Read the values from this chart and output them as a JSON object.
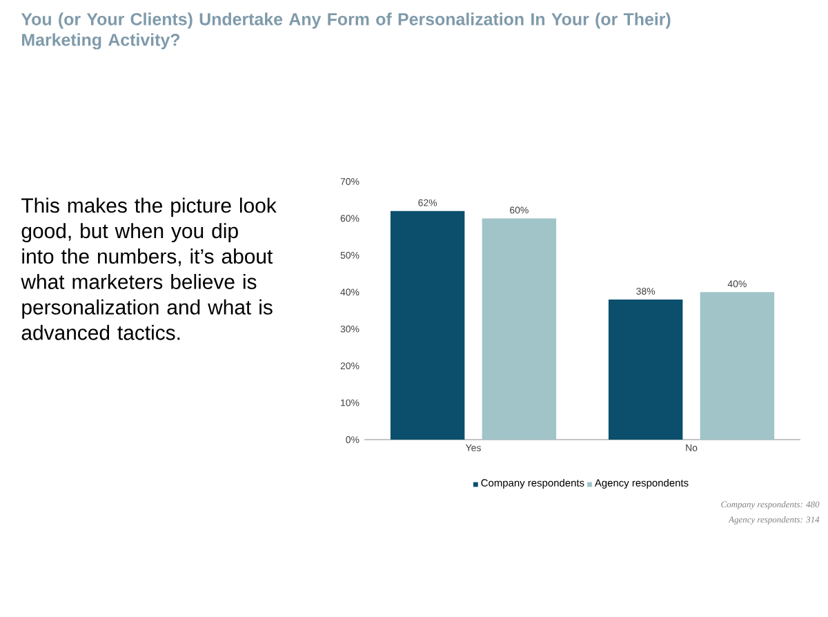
{
  "chart_data": {
    "type": "bar",
    "title": "You (or Your Clients) Undertake Any Form of Personalization In Your (or Their) Marketing Activity?",
    "categories": [
      "Yes",
      "No"
    ],
    "series": [
      {
        "name": "Company respondents",
        "color": "#0b4f6c",
        "values": [
          62,
          38
        ],
        "value_labels": [
          "62%",
          "38%"
        ]
      },
      {
        "name": "Agency respondents",
        "color": "#a0c4c8",
        "values": [
          60,
          40
        ],
        "value_labels": [
          "60%",
          "40%"
        ]
      }
    ],
    "ylim": [
      0,
      70
    ],
    "yticks": [
      {
        "value": 0,
        "label": "0%"
      },
      {
        "value": 10,
        "label": "10%"
      },
      {
        "value": 20,
        "label": "20%"
      },
      {
        "value": 30,
        "label": "30%"
      },
      {
        "value": 40,
        "label": "40%"
      },
      {
        "value": 50,
        "label": "50%"
      },
      {
        "value": 60,
        "label": "60%"
      },
      {
        "value": 70,
        "label": "70%"
      }
    ],
    "legend": "bottom",
    "annotations": [
      "This makes the picture look good, but when you dip into the numbers, it’s about what marketers believe is personalization and what is advanced tactics.",
      "Company respondents: 480",
      "Agency respondents: 314"
    ]
  }
}
